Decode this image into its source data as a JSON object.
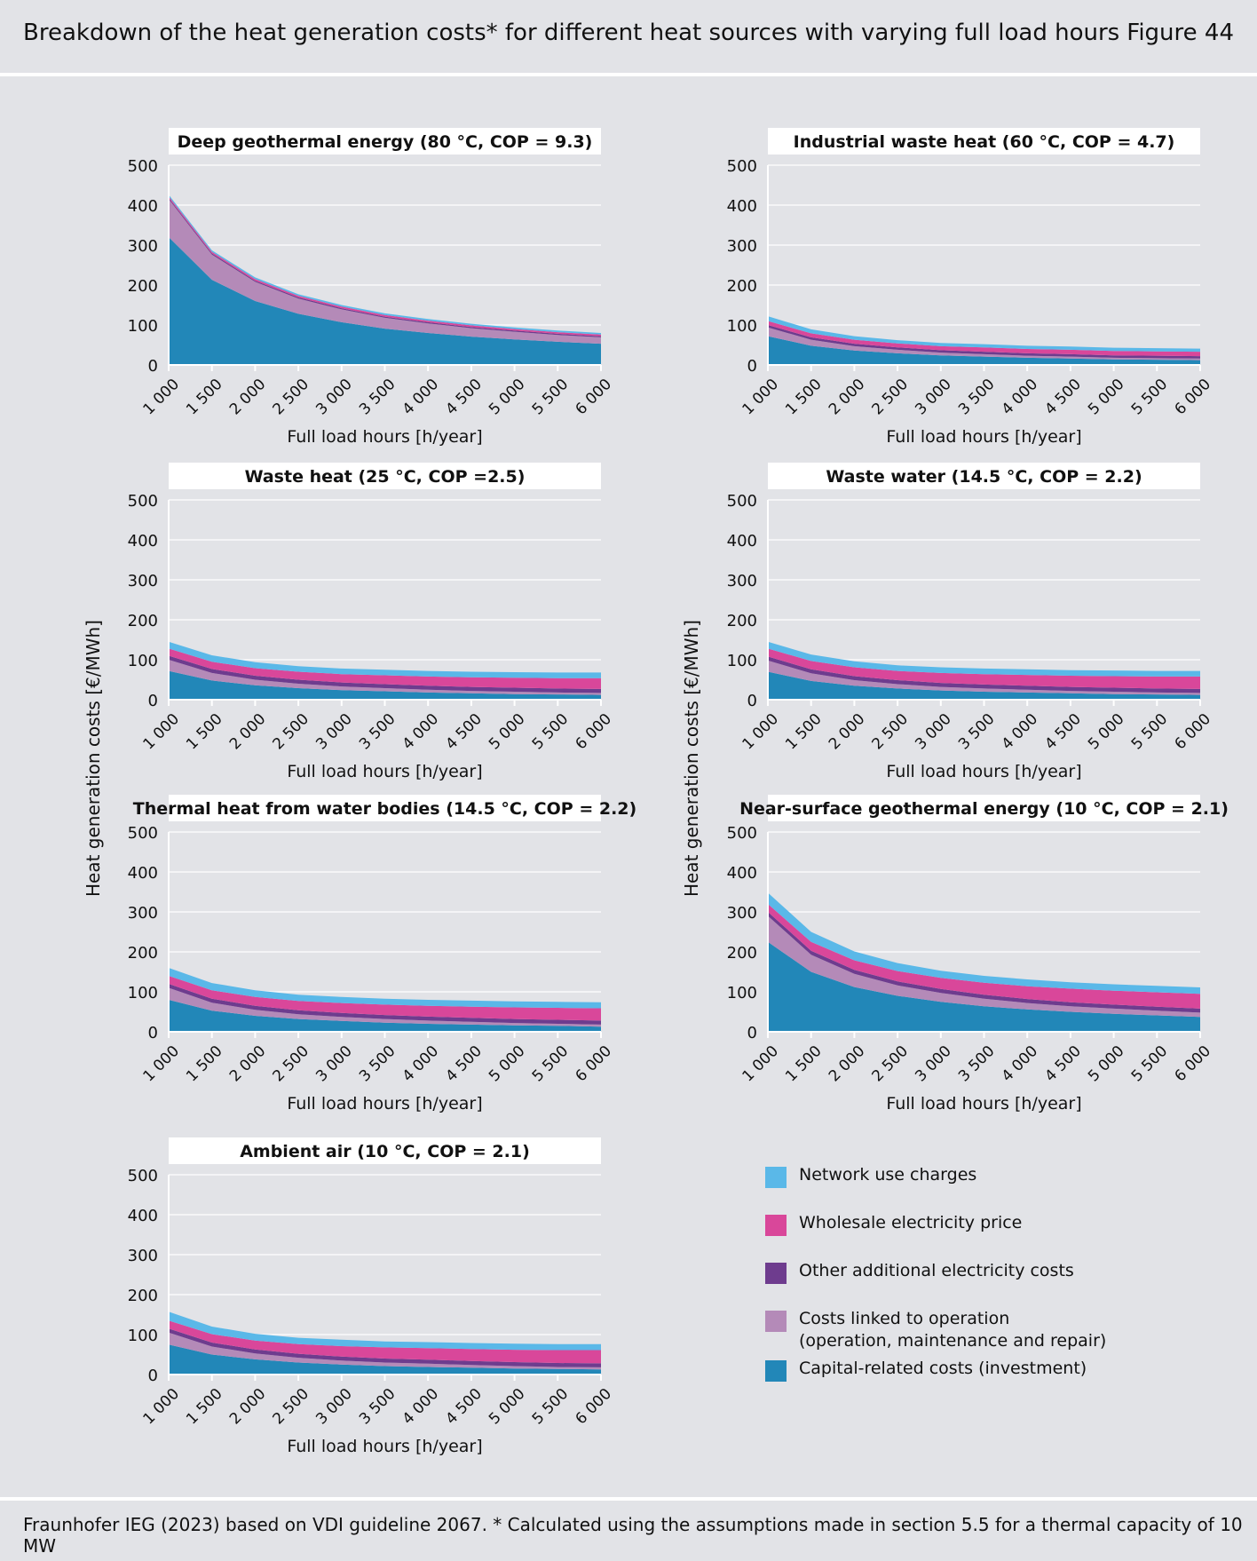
{
  "header": {
    "title": "Breakdown of the heat generation costs* for different heat sources with varying full load hours",
    "figure": "Figure 44"
  },
  "footer": "Fraunhofer IEG (2023) based on VDI guideline 2067. * Calculated using the assumptions made in section 5.5 for a thermal capacity of 10 MW",
  "y_axis_label": "Heat generation costs [€/MWh]",
  "legend": [
    {
      "key": "network",
      "label": "Network use charges",
      "color": "#5ab8e8"
    },
    {
      "key": "wholesale",
      "label": "Wholesale electricity price",
      "color": "#d9479a"
    },
    {
      "key": "other",
      "label": "Other additional electricity costs",
      "color": "#6e3c8e"
    },
    {
      "key": "operation",
      "label": "Costs linked to operation",
      "label2": "(operation, maintenance and repair)",
      "color": "#b48ab8"
    },
    {
      "key": "capital",
      "label": "Capital-related costs (investment)",
      "color": "#2287b8"
    }
  ],
  "chart_data": [
    {
      "type": "area",
      "title": "Deep geothermal energy (80 °C, COP = 9.3)",
      "xlabel": "Full load hours [h/year]",
      "ylabel": "Heat generation costs [€/MWh]",
      "x": [
        1000,
        1500,
        2000,
        2500,
        3000,
        3500,
        4000,
        4500,
        5000,
        5500,
        6000
      ],
      "xtick_labels": [
        "1 000",
        "1 500",
        "2 000",
        "2 500",
        "3 000",
        "3 500",
        "4 000",
        "4 500",
        "5 000",
        "5 500",
        "6 000"
      ],
      "ylim": [
        0,
        500
      ],
      "yticks": [
        0,
        100,
        200,
        300,
        400,
        500
      ],
      "series": [
        {
          "name": "Capital-related costs (investment)",
          "values": [
            320,
            213,
            160,
            128,
            107,
            91,
            80,
            71,
            64,
            58,
            53
          ]
        },
        {
          "name": "Costs linked to operation (operation, maintenance and repair)",
          "values": [
            95,
            63,
            48,
            38,
            32,
            27,
            24,
            21,
            19,
            17,
            16
          ]
        },
        {
          "name": "Other additional electricity costs",
          "values": [
            3,
            3,
            3,
            3,
            3,
            3,
            3,
            3,
            3,
            3,
            3
          ]
        },
        {
          "name": "Wholesale electricity price",
          "values": [
            4,
            4,
            4,
            4,
            4,
            4,
            4,
            4,
            4,
            4,
            4
          ]
        },
        {
          "name": "Network use charges",
          "values": [
            4,
            4,
            4,
            4,
            4,
            4,
            4,
            4,
            4,
            4,
            4
          ]
        }
      ]
    },
    {
      "type": "area",
      "title": "Industrial waste heat (60 °C, COP = 4.7)",
      "xlabel": "Full load hours [h/year]",
      "ylabel": "Heat generation costs [€/MWh]",
      "x": [
        1000,
        1500,
        2000,
        2500,
        3000,
        3500,
        4000,
        4500,
        5000,
        5500,
        6000
      ],
      "xtick_labels": [
        "1 000",
        "1 500",
        "2 000",
        "2 500",
        "3 000",
        "3 500",
        "4 000",
        "4 500",
        "5 000",
        "5 500",
        "6 000"
      ],
      "ylim": [
        0,
        500
      ],
      "yticks": [
        0,
        100,
        200,
        300,
        400,
        500
      ],
      "series": [
        {
          "name": "Capital-related costs (investment)",
          "values": [
            72,
            48,
            36,
            29,
            24,
            21,
            18,
            16,
            14,
            13,
            12
          ]
        },
        {
          "name": "Costs linked to operation (operation, maintenance and repair)",
          "values": [
            22,
            15,
            11,
            9,
            7,
            6,
            5,
            5,
            4,
            4,
            4
          ]
        },
        {
          "name": "Other additional electricity costs",
          "values": [
            6,
            6,
            6,
            6,
            6,
            6,
            6,
            6,
            6,
            6,
            6
          ]
        },
        {
          "name": "Wholesale electricity price",
          "values": [
            10,
            10,
            10,
            10,
            10,
            11,
            11,
            11,
            11,
            11,
            11
          ]
        },
        {
          "name": "Network use charges",
          "values": [
            12,
            10,
            9,
            8,
            8,
            8,
            8,
            8,
            8,
            8,
            8
          ]
        }
      ]
    },
    {
      "type": "area",
      "title": "Waste heat (25 °C, COP =2.5)",
      "xlabel": "Full load hours [h/year]",
      "ylabel": "Heat generation costs [€/MWh]",
      "x": [
        1000,
        1500,
        2000,
        2500,
        3000,
        3500,
        4000,
        4500,
        5000,
        5500,
        6000
      ],
      "xtick_labels": [
        "1 000",
        "1 500",
        "2 000",
        "2 500",
        "3 000",
        "3 500",
        "4 000",
        "4 500",
        "5 000",
        "5 500",
        "6 000"
      ],
      "ylim": [
        0,
        500
      ],
      "yticks": [
        0,
        100,
        200,
        300,
        400,
        500
      ],
      "series": [
        {
          "name": "Capital-related costs (investment)",
          "values": [
            72,
            48,
            36,
            29,
            24,
            21,
            18,
            16,
            14,
            13,
            12
          ]
        },
        {
          "name": "Costs linked to operation (operation, maintenance and repair)",
          "values": [
            28,
            19,
            14,
            11,
            9,
            8,
            7,
            6,
            6,
            5,
            5
          ]
        },
        {
          "name": "Other additional electricity costs",
          "values": [
            10,
            10,
            10,
            10,
            10,
            10,
            10,
            10,
            10,
            10,
            10
          ]
        },
        {
          "name": "Wholesale electricity price",
          "values": [
            18,
            18,
            19,
            20,
            21,
            22,
            23,
            24,
            25,
            26,
            27
          ]
        },
        {
          "name": "Network use charges",
          "values": [
            17,
            16,
            15,
            14,
            14,
            14,
            14,
            14,
            14,
            14,
            14
          ]
        }
      ]
    },
    {
      "type": "area",
      "title": "Waste water (14.5 °C, COP = 2.2)",
      "xlabel": "Full load hours [h/year]",
      "ylabel": "Heat generation costs [€/MWh]",
      "x": [
        1000,
        1500,
        2000,
        2500,
        3000,
        3500,
        4000,
        4500,
        5000,
        5500,
        6000
      ],
      "xtick_labels": [
        "1 000",
        "1 500",
        "2 000",
        "2 500",
        "3 000",
        "3 500",
        "4 000",
        "4 500",
        "5 000",
        "5 500",
        "6 000"
      ],
      "ylim": [
        0,
        500
      ],
      "yticks": [
        0,
        100,
        200,
        300,
        400,
        500
      ],
      "series": [
        {
          "name": "Capital-related costs (investment)",
          "values": [
            70,
            47,
            35,
            28,
            23,
            20,
            18,
            16,
            14,
            13,
            12
          ]
        },
        {
          "name": "Costs linked to operation (operation, maintenance and repair)",
          "values": [
            28,
            19,
            14,
            11,
            9,
            8,
            7,
            6,
            6,
            5,
            5
          ]
        },
        {
          "name": "Other additional electricity costs",
          "values": [
            10,
            10,
            10,
            10,
            10,
            10,
            10,
            10,
            10,
            10,
            10
          ]
        },
        {
          "name": "Wholesale electricity price",
          "values": [
            20,
            21,
            22,
            23,
            25,
            26,
            27,
            28,
            29,
            30,
            31
          ]
        },
        {
          "name": "Network use charges",
          "values": [
            17,
            16,
            15,
            14,
            14,
            14,
            14,
            14,
            14,
            14,
            14
          ]
        }
      ]
    },
    {
      "type": "area",
      "title": "Thermal heat from water bodies (14.5 °C, COP = 2.2)",
      "xlabel": "Full load hours [h/year]",
      "ylabel": "Heat generation costs [€/MWh]",
      "x": [
        1000,
        1500,
        2000,
        2500,
        3000,
        3500,
        4000,
        4500,
        5000,
        5500,
        6000
      ],
      "xtick_labels": [
        "1 000",
        "1 500",
        "2 000",
        "2 500",
        "3 000",
        "3 500",
        "4 000",
        "4 500",
        "5 000",
        "5 500",
        "6 000"
      ],
      "ylim": [
        0,
        500
      ],
      "yticks": [
        0,
        100,
        200,
        300,
        400,
        500
      ],
      "series": [
        {
          "name": "Capital-related costs (investment)",
          "values": [
            80,
            53,
            40,
            32,
            27,
            23,
            20,
            18,
            16,
            15,
            13
          ]
        },
        {
          "name": "Costs linked to operation (operation, maintenance and repair)",
          "values": [
            30,
            20,
            15,
            12,
            10,
            9,
            8,
            7,
            6,
            5,
            5
          ]
        },
        {
          "name": "Other additional electricity costs",
          "values": [
            10,
            10,
            10,
            10,
            10,
            10,
            10,
            10,
            10,
            10,
            10
          ]
        },
        {
          "name": "Wholesale electricity price",
          "values": [
            20,
            21,
            22,
            23,
            25,
            26,
            27,
            28,
            29,
            30,
            31
          ]
        },
        {
          "name": "Network use charges",
          "values": [
            20,
            18,
            17,
            16,
            15,
            15,
            15,
            15,
            15,
            15,
            15
          ]
        }
      ]
    },
    {
      "type": "area",
      "title": "Near-surface geothermal energy (10 °C, COP = 2.1)",
      "xlabel": "Full load hours [h/year]",
      "ylabel": "Heat generation costs [€/MWh]",
      "x": [
        1000,
        1500,
        2000,
        2500,
        3000,
        3500,
        4000,
        4500,
        5000,
        5500,
        6000
      ],
      "xtick_labels": [
        "1 000",
        "1 500",
        "2 000",
        "2 500",
        "3 000",
        "3 500",
        "4 000",
        "4 500",
        "5 000",
        "5 500",
        "6 000"
      ],
      "ylim": [
        0,
        500
      ],
      "yticks": [
        0,
        100,
        200,
        300,
        400,
        500
      ],
      "series": [
        {
          "name": "Capital-related costs (investment)",
          "values": [
            225,
            150,
            112,
            90,
            75,
            64,
            56,
            50,
            45,
            41,
            37
          ]
        },
        {
          "name": "Costs linked to operation (operation, maintenance and repair)",
          "values": [
            65,
            43,
            33,
            26,
            22,
            19,
            16,
            14,
            13,
            12,
            11
          ]
        },
        {
          "name": "Other additional electricity costs",
          "values": [
            10,
            10,
            10,
            10,
            10,
            10,
            10,
            10,
            10,
            10,
            10
          ]
        },
        {
          "name": "Wholesale electricity price",
          "values": [
            20,
            22,
            24,
            26,
            28,
            30,
            32,
            34,
            35,
            36,
            37
          ]
        },
        {
          "name": "Network use charges",
          "values": [
            28,
            25,
            22,
            20,
            18,
            17,
            17,
            16,
            16,
            16,
            16
          ]
        }
      ]
    },
    {
      "type": "area",
      "title": "Ambient air (10 °C, COP = 2.1)",
      "xlabel": "Full load hours [h/year]",
      "ylabel": "Heat generation costs [€/MWh]",
      "x": [
        1000,
        1500,
        2000,
        2500,
        3000,
        3500,
        4000,
        4500,
        5000,
        5500,
        6000
      ],
      "xtick_labels": [
        "1 000",
        "1 500",
        "2 000",
        "2 500",
        "3 000",
        "3 500",
        "4 000",
        "4 500",
        "5 000",
        "5 500",
        "6 000"
      ],
      "ylim": [
        0,
        500
      ],
      "yticks": [
        0,
        100,
        200,
        300,
        400,
        500
      ],
      "series": [
        {
          "name": "Capital-related costs (investment)",
          "values": [
            75,
            50,
            38,
            30,
            25,
            21,
            19,
            17,
            15,
            14,
            13
          ]
        },
        {
          "name": "Costs linked to operation (operation, maintenance and repair)",
          "values": [
            30,
            20,
            15,
            12,
            10,
            9,
            8,
            7,
            6,
            5,
            5
          ]
        },
        {
          "name": "Other additional electricity costs",
          "values": [
            10,
            10,
            10,
            10,
            10,
            10,
            10,
            10,
            10,
            10,
            10
          ]
        },
        {
          "name": "Wholesale electricity price",
          "values": [
            20,
            21,
            22,
            24,
            26,
            28,
            29,
            30,
            31,
            32,
            33
          ]
        },
        {
          "name": "Network use charges",
          "values": [
            22,
            19,
            17,
            16,
            16,
            15,
            15,
            15,
            15,
            15,
            15
          ]
        }
      ]
    }
  ]
}
